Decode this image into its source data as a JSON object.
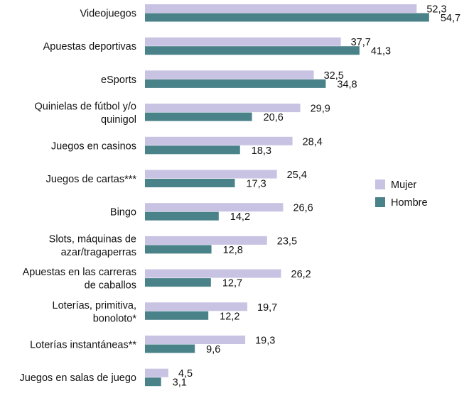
{
  "chart_data": {
    "type": "bar",
    "orientation": "horizontal",
    "categories": [
      [
        "Videojuegos"
      ],
      [
        "Apuestas deportivas"
      ],
      [
        "eSports"
      ],
      [
        "Quinielas de fútbol y/o",
        "quinigol"
      ],
      [
        "Juegos en casinos"
      ],
      [
        "Juegos de cartas***"
      ],
      [
        "Bingo"
      ],
      [
        "Slots, máquinas de",
        "azar/tragaperras"
      ],
      [
        "Apuestas en las carreras",
        "de caballos"
      ],
      [
        "Loterías, primitiva,",
        "bonoloto*"
      ],
      [
        "Loterías instantáneas**"
      ],
      [
        "Juegos en salas de juego"
      ]
    ],
    "series": [
      {
        "name": "Mujer",
        "color": "#c8c3e3",
        "values": [
          52.3,
          37.7,
          32.5,
          29.9,
          28.4,
          25.4,
          26.6,
          23.5,
          26.2,
          19.7,
          19.3,
          4.5
        ],
        "labels": [
          "52,3",
          "37,7",
          "32,5",
          "29,9",
          "28,4",
          "25,4",
          "26,6",
          "23,5",
          "26,2",
          "19,7",
          "19,3",
          "4,5"
        ]
      },
      {
        "name": "Hombre",
        "color": "#4a8289",
        "values": [
          54.7,
          41.3,
          34.8,
          20.6,
          18.3,
          17.3,
          14.2,
          12.8,
          12.7,
          12.2,
          9.6,
          3.1
        ],
        "labels": [
          "54,7",
          "41,3",
          "34,8",
          "20,6",
          "18,3",
          "17,3",
          "14,2",
          "12,8",
          "12,7",
          "12,2",
          "9,6",
          "3,1"
        ]
      }
    ],
    "legend_position": "right",
    "grid": false,
    "axis_visible": false
  }
}
